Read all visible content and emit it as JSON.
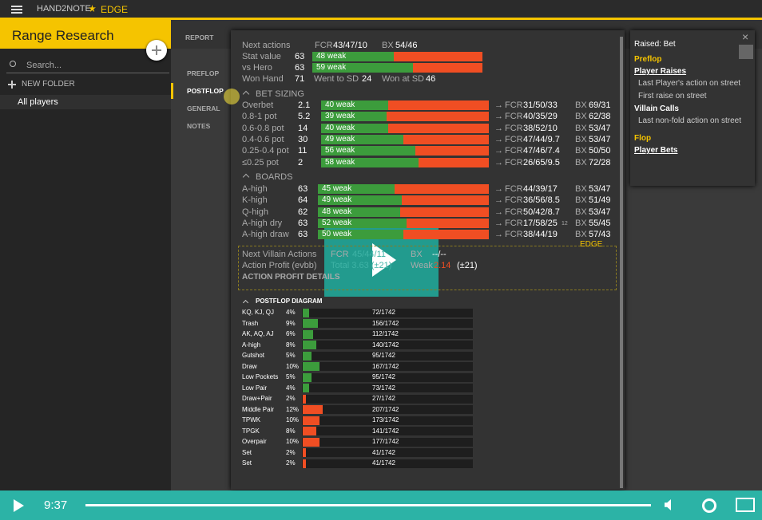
{
  "topbar": {
    "app": "HAND2NOTE",
    "edge": "EDGE"
  },
  "sidebar": {
    "title": "Range Research",
    "search": "Search...",
    "new_folder": "NEW FOLDER",
    "item": "All players"
  },
  "tabs": [
    "REPORT",
    "PREFLOP",
    "POSTFLOP",
    "GENERAL",
    "NOTES"
  ],
  "labels": {
    "fcr": "FCR",
    "bx": "BX",
    "arrow": "→"
  },
  "summary": {
    "next_label": "Next actions",
    "next_fcr": "43/47/10",
    "next_bx": "54/46",
    "rows": [
      {
        "label": "Stat value",
        "count": 63,
        "weak": 48,
        "weak_label": "48 weak"
      },
      {
        "label": "vs Hero",
        "count": 63,
        "weak": 59,
        "weak_label": "59 weak"
      }
    ],
    "won_label": "Won Hand",
    "won": 71,
    "sd_label": "Went to SD",
    "sd": 24,
    "wsd_label": "Won at SD",
    "wsd": 46
  },
  "bet_sizing": {
    "title": "BET SIZING",
    "rows": [
      {
        "label": "Overbet",
        "count": 2.1,
        "weak": 40,
        "weak_label": "40 weak",
        "fcr": "31/50/33",
        "bx": "69/31"
      },
      {
        "label": "0.8-1 pot",
        "count": 5.2,
        "weak": 39,
        "weak_label": "39 weak",
        "fcr": "40/35/29",
        "bx": "62/38"
      },
      {
        "label": "0.6-0.8 pot",
        "count": 14,
        "weak": 40,
        "weak_label": "40 weak",
        "fcr": "38/52/10",
        "bx": "53/47"
      },
      {
        "label": "0.4-0.6 pot",
        "count": 30,
        "weak": 49,
        "weak_label": "49 weak",
        "fcr": "47/44/9.7",
        "bx": "53/47"
      },
      {
        "label": "0.25-0.4 pot",
        "count": 11,
        "weak": 56,
        "weak_label": "56 weak",
        "fcr": "47/46/7.4",
        "bx": "50/50"
      },
      {
        "label": "≤0.25 pot",
        "count": 2,
        "weak": 58,
        "weak_label": "58 weak",
        "fcr": "26/65/9.5",
        "bx": "72/28"
      }
    ]
  },
  "boards": {
    "title": "BOARDS",
    "rows": [
      {
        "label": "A-high",
        "count": 63,
        "weak": 45,
        "weak_label": "45 weak",
        "fcr": "44/39/17",
        "bx": "53/47"
      },
      {
        "label": "K-high",
        "count": 64,
        "weak": 49,
        "weak_label": "49 weak",
        "fcr": "36/56/8.5",
        "bx": "51/49"
      },
      {
        "label": "Q-high",
        "count": 62,
        "weak": 48,
        "weak_label": "48 weak",
        "fcr": "50/42/8.7",
        "bx": "53/47"
      },
      {
        "label": "A-high dry",
        "count": 63,
        "weak": 52,
        "weak_label": "52 weak",
        "fcr": "17/58/25",
        "note": "12",
        "bx": "55/45"
      },
      {
        "label": "A-high draw",
        "count": 63,
        "weak": 50,
        "weak_label": "50 weak",
        "fcr": "38/44/19",
        "bx": "57/43"
      }
    ]
  },
  "villain": {
    "label": "Next Villain Actions",
    "fcr": "45/44/11",
    "bx": "--/--",
    "profit_label": "Action Profit (evbb)",
    "total": "Total 3.63 (±21)",
    "weak_label": "Weak",
    "weak": "2.14",
    "weak_pm": "(±21)",
    "details": "ACTION PROFIT DETAILS",
    "edge": "EDGE"
  },
  "diagram": {
    "title": "POSTFLOP DIAGRAM",
    "rows": [
      {
        "label": "KQ, KJ, QJ",
        "pct": 4,
        "pct_label": "4%",
        "count": "72/1742",
        "color": "#3c9c3c"
      },
      {
        "label": "Trash",
        "pct": 9,
        "pct_label": "9%",
        "count": "156/1742",
        "color": "#3c9c3c"
      },
      {
        "label": "AK, AQ, AJ",
        "pct": 6,
        "pct_label": "6%",
        "count": "112/1742",
        "color": "#3c9c3c"
      },
      {
        "label": "A-high",
        "pct": 8,
        "pct_label": "8%",
        "count": "140/1742",
        "color": "#3c9c3c"
      },
      {
        "label": "Gutshot",
        "pct": 5,
        "pct_label": "5%",
        "count": "95/1742",
        "color": "#3c9c3c"
      },
      {
        "label": "Draw",
        "pct": 10,
        "pct_label": "10%",
        "count": "167/1742",
        "color": "#3c9c3c"
      },
      {
        "label": "Low Pockets",
        "pct": 5,
        "pct_label": "5%",
        "count": "95/1742",
        "color": "#3c9c3c"
      },
      {
        "label": "Low Pair",
        "pct": 4,
        "pct_label": "4%",
        "count": "73/1742",
        "color": "#3c9c3c"
      },
      {
        "label": "Draw+Pair",
        "pct": 2,
        "pct_label": "2%",
        "count": "27/1742",
        "color": "#f04e23"
      },
      {
        "label": "Middle Pair",
        "pct": 12,
        "pct_label": "12%",
        "count": "207/1742",
        "color": "#f04e23"
      },
      {
        "label": "TPWK",
        "pct": 10,
        "pct_label": "10%",
        "count": "173/1742",
        "color": "#f04e23"
      },
      {
        "label": "TPGK",
        "pct": 8,
        "pct_label": "8%",
        "count": "141/1742",
        "color": "#f04e23"
      },
      {
        "label": "Overpair",
        "pct": 10,
        "pct_label": "10%",
        "count": "177/1742",
        "color": "#f04e23"
      },
      {
        "label": "Set",
        "pct": 2,
        "pct_label": "2%",
        "count": "41/1742",
        "color": "#f04e23"
      },
      {
        "label": "Set",
        "pct": 2,
        "pct_label": "2%",
        "count": "41/1742",
        "color": "#f04e23"
      }
    ]
  },
  "side_panel": {
    "title": "Raised: Bet",
    "sections": [
      {
        "street": "Preflop",
        "groups": [
          {
            "name": "Player Raises",
            "items": [
              "Last Player's action on street",
              "First raise on street"
            ]
          },
          {
            "name": "Villain Calls",
            "items": [
              "Last non-fold action on street"
            ]
          }
        ]
      },
      {
        "street": "Flop",
        "groups": [
          {
            "name": "Player Bets",
            "items": []
          }
        ]
      }
    ]
  },
  "video": {
    "time": "9:37"
  }
}
